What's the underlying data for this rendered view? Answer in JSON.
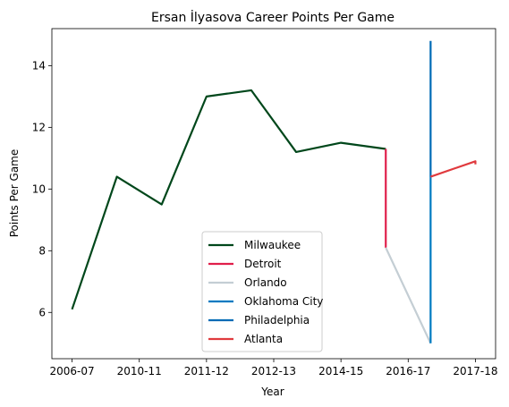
{
  "chart_data": {
    "type": "line",
    "title": "Ersan İlyasova Career Points Per Game",
    "xlabel": "Year",
    "ylabel": "Points Per Game",
    "x_tick_labels": [
      "2006-07",
      "2010-11",
      "2011-12",
      "2012-13",
      "2014-15",
      "2016-17",
      "2017-18"
    ],
    "ylim": [
      4.5,
      15.2
    ],
    "y_ticks": [
      6,
      8,
      10,
      12,
      14
    ],
    "grid": false,
    "legend_position": "lower-center",
    "series": [
      {
        "name": "Milwaukee",
        "color": "#00471B",
        "x": [
          0,
          1,
          2,
          3,
          4,
          5,
          6,
          7
        ],
        "y": [
          6.1,
          10.4,
          9.5,
          13.0,
          13.2,
          11.2,
          11.5,
          11.3
        ]
      },
      {
        "name": "Detroit",
        "color": "#E01E4A",
        "x": [
          7,
          7
        ],
        "y": [
          11.3,
          8.1
        ]
      },
      {
        "name": "Orlando",
        "color": "#C4CED4",
        "x": [
          7,
          8
        ],
        "y": [
          8.1,
          5.0
        ]
      },
      {
        "name": "Oklahoma City",
        "color": "#007AC1",
        "x": [
          8,
          8
        ],
        "y": [
          5.0,
          10.4
        ]
      },
      {
        "name": "Philadelphia",
        "color": "#006BB6",
        "x": [
          8,
          8
        ],
        "y": [
          14.8,
          10.4
        ]
      },
      {
        "name": "Atlanta",
        "color": "#E03A3E",
        "x": [
          8,
          9,
          9
        ],
        "y": [
          10.4,
          10.9,
          10.8
        ]
      }
    ]
  }
}
